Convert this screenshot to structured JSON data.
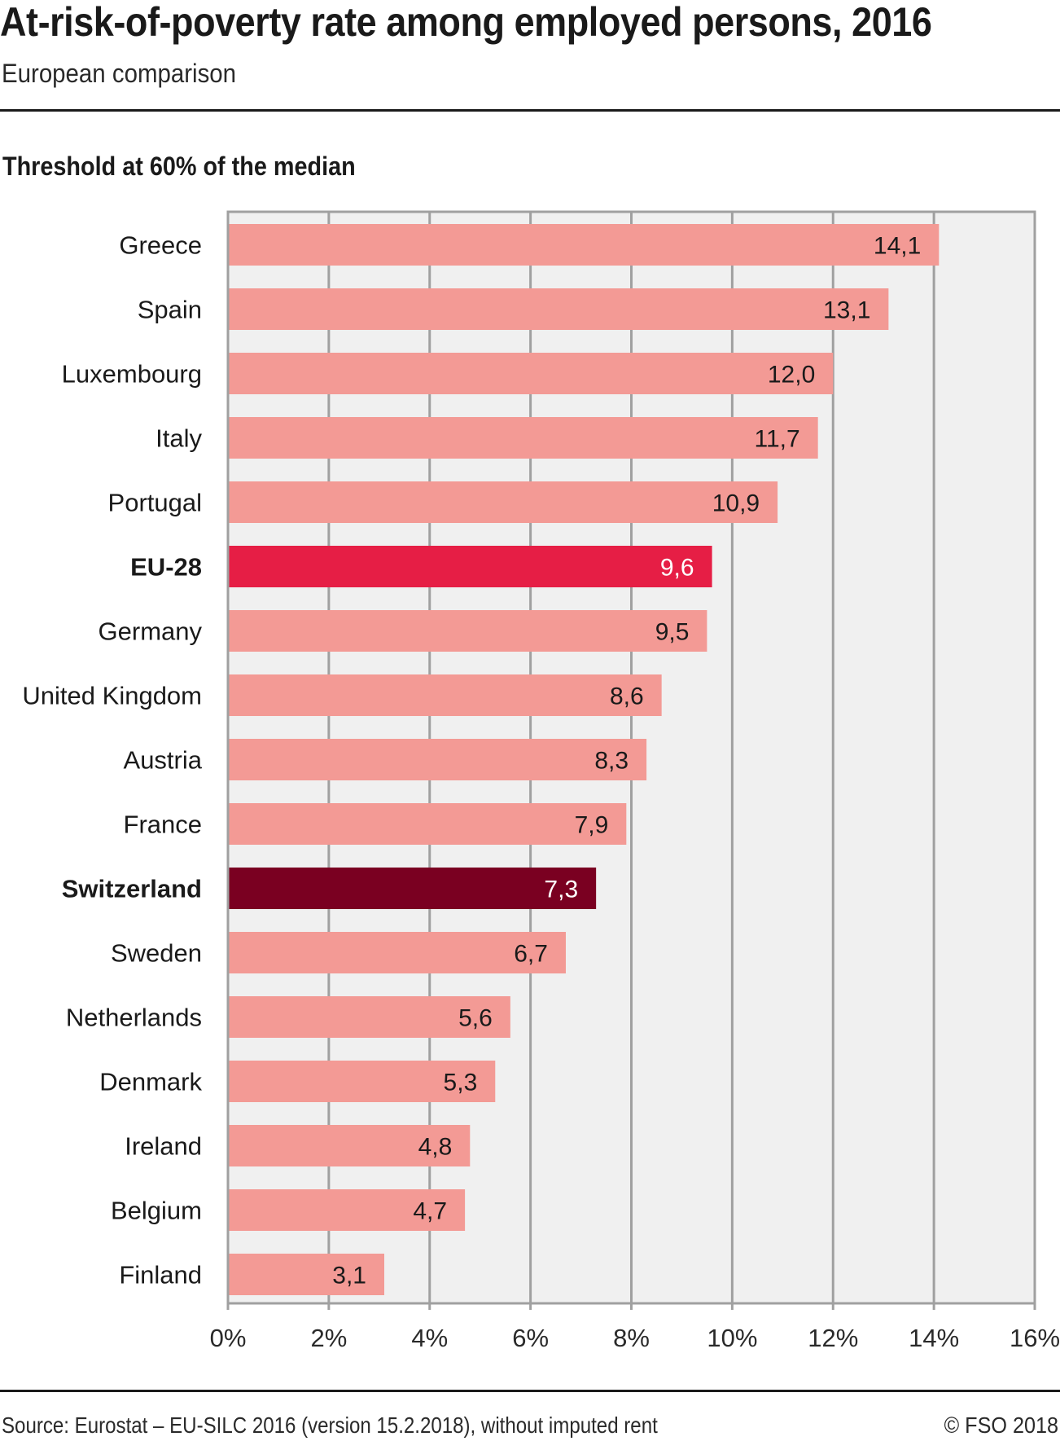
{
  "header": {
    "title": "At-risk-of-poverty rate among employed persons, 2016",
    "subtitle": "European comparison",
    "panel_title": "Threshold at 60% of the median"
  },
  "footer": {
    "source": "Source: Eurostat – EU-SILC 2016 (version 15.2.2018), without imputed rent",
    "copyright": "© FSO 2018"
  },
  "colors": {
    "default_bar": "#F39A95",
    "eu_bar": "#E61E45",
    "switzerland_bar": "#7A0021",
    "plot_background": "#F0F0F0",
    "grid": "#A0A0A0",
    "text": "#1A1A1A"
  },
  "chart_data": {
    "type": "bar",
    "orientation": "horizontal",
    "title": "At-risk-of-poverty rate among employed persons, 2016",
    "subtitle": "European comparison",
    "panel_title": "Threshold at 60% of the median",
    "xlabel": "",
    "ylabel": "",
    "xlim": [
      0,
      16
    ],
    "x_ticks": [
      0,
      2,
      4,
      6,
      8,
      10,
      12,
      14,
      16
    ],
    "x_tick_labels": [
      "0%",
      "2%",
      "4%",
      "6%",
      "8%",
      "10%",
      "12%",
      "14%",
      "16%"
    ],
    "grid": true,
    "legend": "none",
    "categories": [
      "Greece",
      "Spain",
      "Luxembourg",
      "Italy",
      "Portugal",
      "EU-28",
      "Germany",
      "United Kingdom",
      "Austria",
      "France",
      "Switzerland",
      "Sweden",
      "Netherlands",
      "Denmark",
      "Ireland",
      "Belgium",
      "Finland"
    ],
    "values": [
      14.1,
      13.1,
      12.0,
      11.7,
      10.9,
      9.6,
      9.5,
      8.6,
      8.3,
      7.9,
      7.3,
      6.7,
      5.6,
      5.3,
      4.8,
      4.7,
      3.1
    ],
    "value_labels": [
      "14,1",
      "13,1",
      "12,0",
      "11,7",
      "10,9",
      "9,6",
      "9,5",
      "8,6",
      "8,3",
      "7,9",
      "7,3",
      "6,7",
      "5,6",
      "5,3",
      "4,8",
      "4,7",
      "3,1"
    ],
    "highlight": {
      "EU-28": "eu",
      "Switzerland": "switzerland"
    }
  }
}
